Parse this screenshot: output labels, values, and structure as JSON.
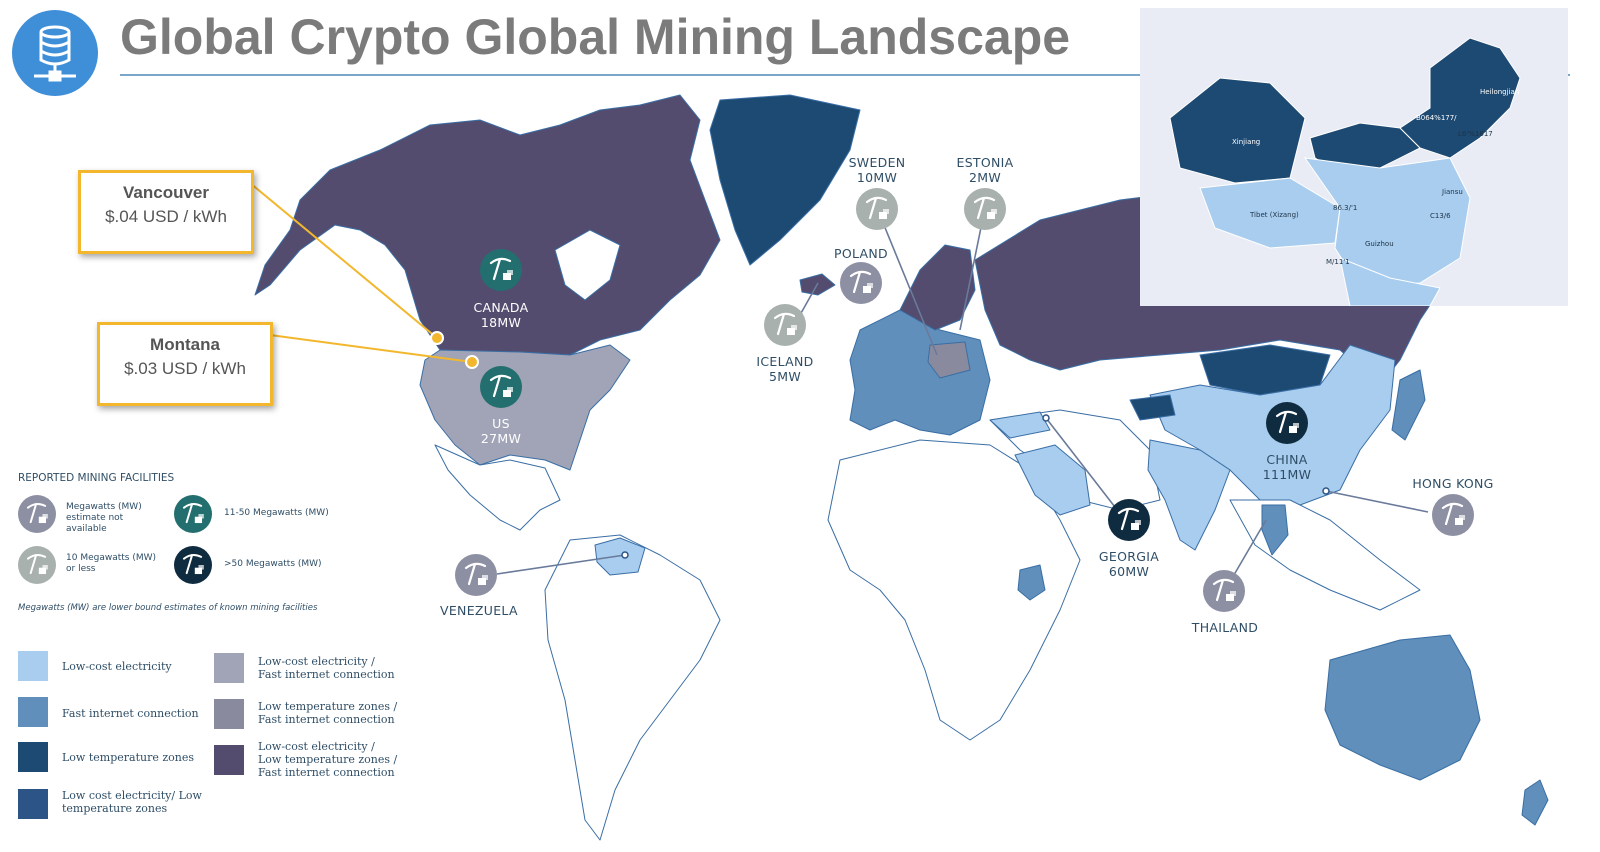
{
  "title": "Global Crypto Global Mining Landscape",
  "logo_icon": "database-network-icon",
  "colors": {
    "ocean": "#ffffff",
    "land_outline": "#3a6ea5",
    "low_cost_electricity": "#a8cdef",
    "fast_internet": "#5f8fba",
    "low_temperature": "#1d4a72",
    "low_cost_low_temp": "#2d5487",
    "low_cost_fast_internet": "#a0a4b6",
    "low_temp_fast_internet": "#8a8a9e",
    "all_three": "#534c6e",
    "callout_border": "#f2b72d",
    "title_gray": "#7b7b7b"
  },
  "callouts": [
    {
      "city": "Vancouver",
      "price": "$.04 USD / kWh"
    },
    {
      "city": "Montana",
      "price": "$.03 USD / kWh"
    }
  ],
  "markers": [
    {
      "name": "CANADA",
      "value": "18MW",
      "tier": "11-50 Megawatts (MW)"
    },
    {
      "name": "US",
      "value": "27MW",
      "tier": "11-50 Megawatts (MW)"
    },
    {
      "name": "SWEDEN",
      "value": "10MW",
      "tier": "10 Megawatts (MW) or less"
    },
    {
      "name": "ESTONIA",
      "value": "2MW",
      "tier": "10 Megawatts (MW) or less"
    },
    {
      "name": "POLAND",
      "value": "",
      "tier": "Megawatts (MW) estimate not available"
    },
    {
      "name": "ICELAND",
      "value": "5MW",
      "tier": "10 Megawatts (MW) or less"
    },
    {
      "name": "CHINA",
      "value": "111MW",
      "tier": ">50 Megawatts (MW)"
    },
    {
      "name": "GEORGIA",
      "value": "60MW",
      "tier": ">50 Megawatts (MW)"
    },
    {
      "name": "HONG KONG",
      "value": "",
      "tier": "Megawatts (MW) estimate not available"
    },
    {
      "name": "THAILAND",
      "value": "",
      "tier": "Megawatts (MW) estimate not available"
    },
    {
      "name": "VENEZUELA",
      "value": "",
      "tier": "Megawatts (MW) estimate not available"
    }
  ],
  "legend": {
    "heading": "REPORTED MINING FACILITIES",
    "facilities": [
      {
        "label": "Megawatts (MW) estimate not available",
        "badge": "gray"
      },
      {
        "label": "11-50 Megawatts (MW)",
        "badge": "teal"
      },
      {
        "label": "10 Megawatts (MW) or less",
        "badge": "light-gray"
      },
      {
        "label": ">50 Megawatts (MW)",
        "badge": "navy"
      }
    ],
    "note": "Megawatts (MW) are lower bound estimates of known mining facilities",
    "categories": [
      {
        "label": "Low-cost electricity",
        "color": "#a8cdef"
      },
      {
        "label": "Low-cost electricity / Fast internet connection",
        "color": "#a0a4b6"
      },
      {
        "label": "Fast internet connection",
        "color": "#5f8fba"
      },
      {
        "label": "Low temperature zones / Fast internet connection",
        "color": "#8a8a9e"
      },
      {
        "label": "Low temperature zones",
        "color": "#1d4a72"
      },
      {
        "label": "Low-cost electricity / Low temperature zones / Fast internet connection",
        "color": "#534c6e"
      },
      {
        "label": "Low cost electricity/ Low temperature zones",
        "color": "#2d5487"
      }
    ]
  },
  "china_inset": {
    "labels": [
      "Heilongjian",
      "Xinjiang",
      "B064%177/",
      "L6'%1617",
      "Jiansu",
      "86.3/'1",
      "C13/6",
      "Tibet (Xizang)",
      "Guizhou",
      "M/11'1"
    ]
  }
}
